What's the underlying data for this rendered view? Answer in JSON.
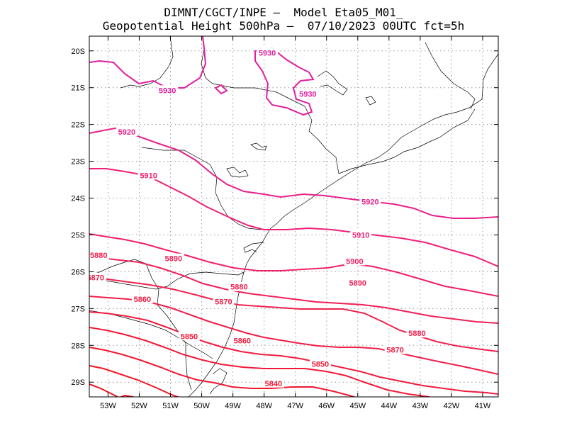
{
  "title_line1": "DIMNT/CGCT/INPE –  Model Eta05_M01_",
  "title_line2": "Geopotential Height 500hPa –  07/10/2023 00UTC fct=5h",
  "map": {
    "lon_range": [
      -53.6,
      -40.5
    ],
    "lat_range": [
      -29.4,
      -19.6
    ],
    "lat_ticks": [
      "20S",
      "21S",
      "22S",
      "23S",
      "24S",
      "25S",
      "26S",
      "27S",
      "28S",
      "29S"
    ],
    "lon_ticks": [
      "53W",
      "52W",
      "51W",
      "50W",
      "49W",
      "48W",
      "47W",
      "46W",
      "45W",
      "44W",
      "43W",
      "42W",
      "41W"
    ],
    "grid": "dotted",
    "contour_interval": 10
  },
  "contour_labels": [
    {
      "text": "5930",
      "lon": -47.9,
      "lat": -20.05,
      "color": "#e020a0"
    },
    {
      "text": "5930",
      "lon": -51.1,
      "lat": -21.07,
      "color": "#e020a0"
    },
    {
      "text": "5930",
      "lon": -46.6,
      "lat": -21.17,
      "color": "#e020a0"
    },
    {
      "text": "5920",
      "lon": -52.4,
      "lat": -22.2,
      "color": "#e8208a"
    },
    {
      "text": "5920",
      "lon": -44.6,
      "lat": -24.1,
      "color": "#e8208a"
    },
    {
      "text": "5910",
      "lon": -51.7,
      "lat": -23.38,
      "color": "#f02078"
    },
    {
      "text": "5910",
      "lon": -44.9,
      "lat": -25.0,
      "color": "#f02078"
    },
    {
      "text": "5900",
      "lon": -45.1,
      "lat": -25.71,
      "color": "#f02068"
    },
    {
      "text": "5890",
      "lon": -50.9,
      "lat": -25.64,
      "color": "#f02058"
    },
    {
      "text": "5890",
      "lon": -45.0,
      "lat": -26.3,
      "color": "#f02058"
    },
    {
      "text": "5880",
      "lon": -53.3,
      "lat": -25.55,
      "color": "#f02050"
    },
    {
      "text": "5880",
      "lon": -48.8,
      "lat": -26.41,
      "color": "#f02050"
    },
    {
      "text": "5880",
      "lon": -43.1,
      "lat": -27.67,
      "color": "#f02050"
    },
    {
      "text": "5870",
      "lon": -53.4,
      "lat": -26.16,
      "color": "#f01e48"
    },
    {
      "text": "5870",
      "lon": -49.3,
      "lat": -26.81,
      "color": "#f01e48"
    },
    {
      "text": "5870",
      "lon": -43.8,
      "lat": -28.12,
      "color": "#f01e48"
    },
    {
      "text": "5860",
      "lon": -51.9,
      "lat": -26.74,
      "color": "#f01c40"
    },
    {
      "text": "5860",
      "lon": -48.7,
      "lat": -27.87,
      "color": "#f01c40"
    },
    {
      "text": "5850",
      "lon": -50.4,
      "lat": -27.75,
      "color": "#f01a38"
    },
    {
      "text": "5850",
      "lon": -46.2,
      "lat": -28.5,
      "color": "#f01a38"
    },
    {
      "text": "5840",
      "lon": -47.7,
      "lat": -29.03,
      "color": "#f01830"
    }
  ],
  "colors": {
    "frame": "#000000",
    "grid": "#999999",
    "coastline": "#000000"
  }
}
